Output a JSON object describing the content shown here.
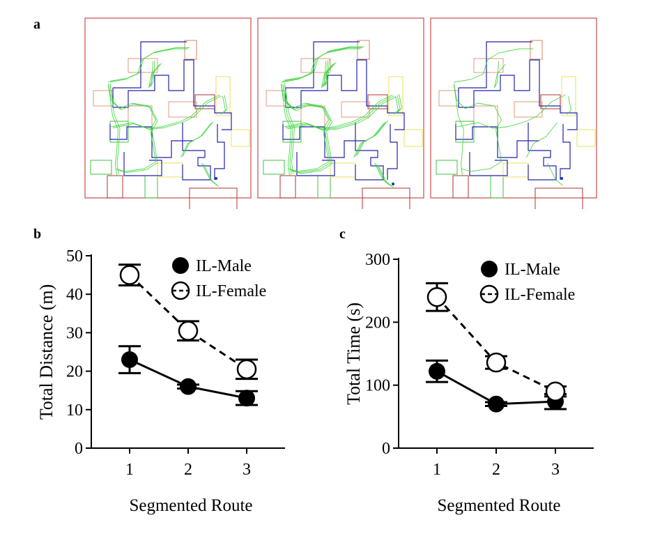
{
  "panels": {
    "a": "a",
    "b": "b",
    "c": "c"
  },
  "maze": {
    "count": 3,
    "colors": {
      "frame": "#c94c4c",
      "blue": "#2222aa",
      "red": "#b03030",
      "orange": "#d9835a",
      "salmon": "#e39a7a",
      "yellow": "#e8e05a",
      "green": "#3cc23c",
      "track": "#2ed12e",
      "dot": "#1030c0"
    }
  },
  "chart_data": [
    {
      "type": "line",
      "ylabel": "Total Distance (m)",
      "xlabel": "Segmented Route",
      "x": [
        1,
        2,
        3
      ],
      "ylim": [
        0,
        50
      ],
      "yticks": [
        0,
        10,
        20,
        30,
        40,
        50
      ],
      "series": [
        {
          "name": "IL-Male",
          "values": [
            23,
            16,
            13
          ],
          "errors": [
            3.5,
            0.5,
            1.8
          ],
          "line": "solid",
          "marker": "filled-circle"
        },
        {
          "name": "IL-Female",
          "values": [
            45,
            30.5,
            20.5
          ],
          "errors": [
            2.7,
            2.5,
            2.5
          ],
          "line": "dashed",
          "marker": "open-circle"
        }
      ],
      "legend": "top-right"
    },
    {
      "type": "line",
      "ylabel": "Total Time (s)",
      "xlabel": "Segmented Route",
      "x": [
        1,
        2,
        3
      ],
      "ylim": [
        0,
        300
      ],
      "yticks": [
        0,
        100,
        200,
        300
      ],
      "series": [
        {
          "name": "IL-Male",
          "values": [
            122,
            70,
            74
          ],
          "errors": [
            17,
            3,
            12
          ],
          "line": "solid",
          "marker": "filled-circle"
        },
        {
          "name": "IL-Female",
          "values": [
            240,
            136,
            90
          ],
          "errors": [
            22,
            10,
            8
          ],
          "line": "dashed",
          "marker": "open-circle"
        }
      ],
      "legend": "top-right"
    }
  ]
}
